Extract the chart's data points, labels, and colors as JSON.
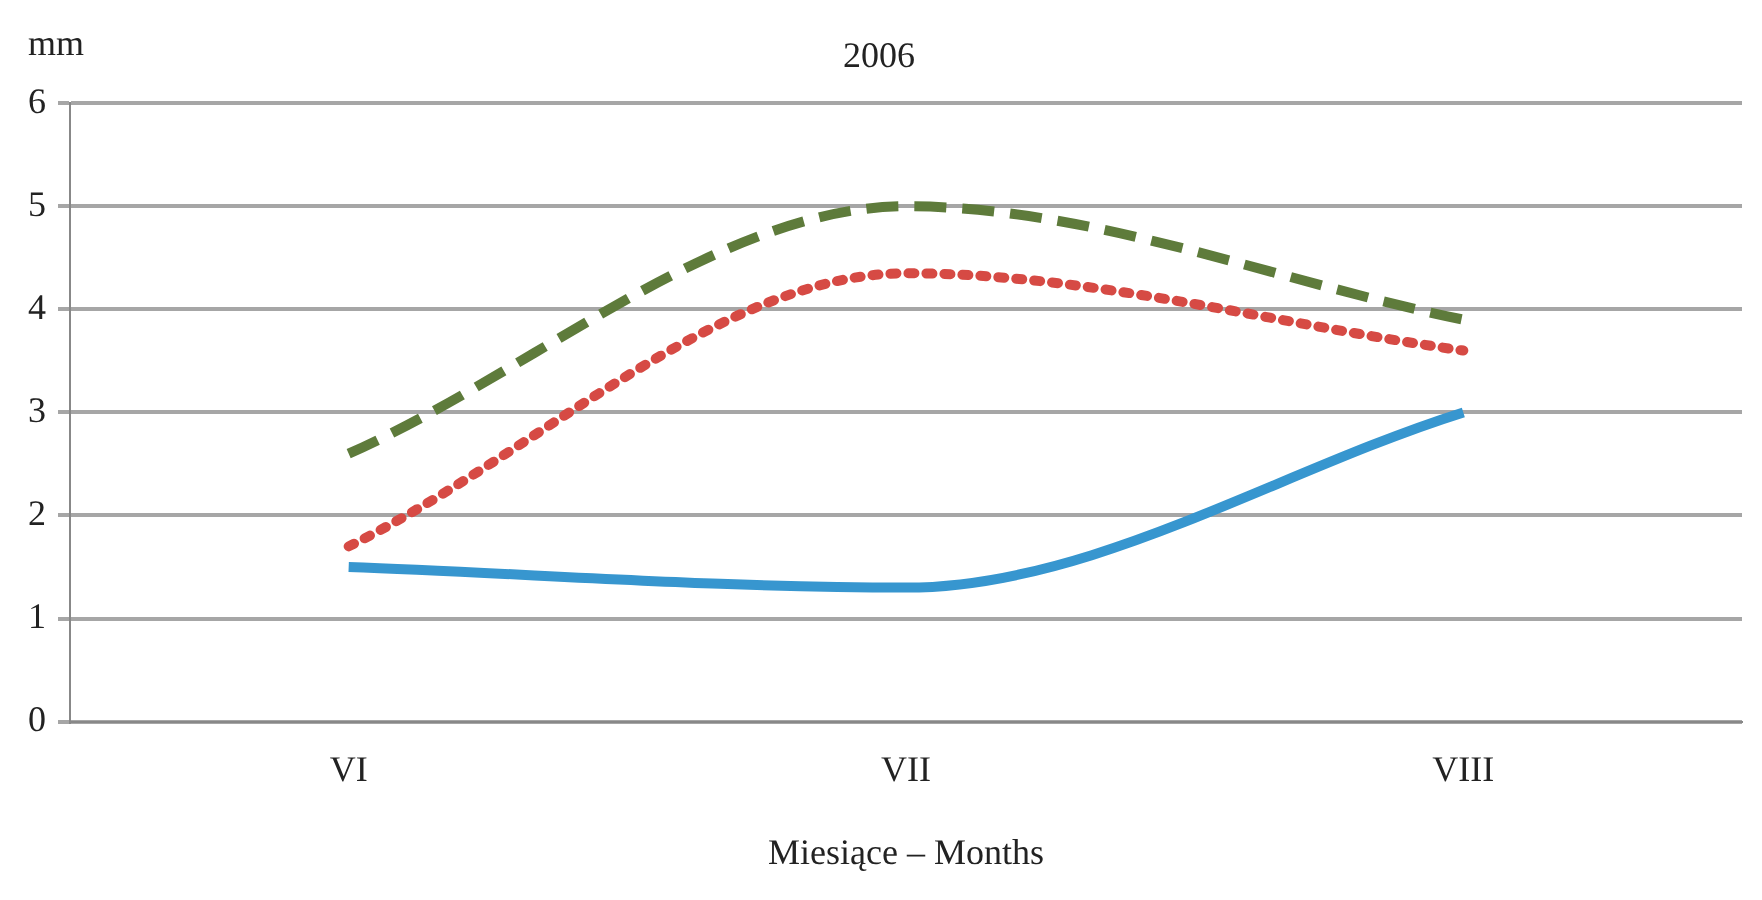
{
  "chart_data": {
    "type": "line",
    "title": "2006",
    "xlabel": "Miesiące – Months",
    "ylabel": "mm",
    "categories": [
      "VI",
      "VII",
      "VIII"
    ],
    "series": [
      {
        "color": "#3796cf",
        "line_style": "solid",
        "values": [
          1.5,
          1.3,
          3.0
        ]
      },
      {
        "color": "#d64a44",
        "line_style": "dotted",
        "values": [
          1.7,
          4.35,
          3.6
        ]
      },
      {
        "color": "#5e7b3b",
        "line_style": "dashed",
        "values": [
          2.6,
          5.0,
          3.9
        ]
      }
    ],
    "ylim": [
      0,
      6
    ],
    "yticks": [
      0,
      1,
      2,
      3,
      4,
      5,
      6
    ],
    "grid": "y",
    "legend": false,
    "marker": "none"
  }
}
